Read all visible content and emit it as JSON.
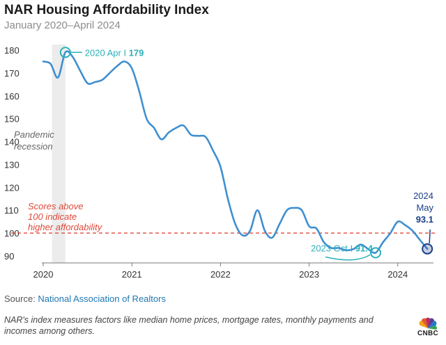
{
  "header": {
    "title": "NAR Housing Affordability Index",
    "subtitle": "January 2020–April 2024"
  },
  "chart_data": {
    "type": "line",
    "title": "NAR Housing Affordability Index",
    "subtitle": "January 2020–April 2024",
    "xlabel": "",
    "ylabel": "",
    "x_ticks": [
      "2020",
      "2021",
      "2022",
      "2023",
      "2024"
    ],
    "y_ticks": [
      90,
      100,
      110,
      120,
      130,
      140,
      150,
      160,
      170,
      180
    ],
    "ylim": [
      88,
      182
    ],
    "xlim": [
      "2020-01",
      "2024-05"
    ],
    "grid": false,
    "series": [
      {
        "color": "#3f8fd0",
        "x": [
          "2020-01",
          "2020-02",
          "2020-03",
          "2020-04",
          "2020-05",
          "2020-06",
          "2020-07",
          "2020-08",
          "2020-09",
          "2020-10",
          "2020-11",
          "2020-12",
          "2021-01",
          "2021-02",
          "2021-03",
          "2021-04",
          "2021-05",
          "2021-06",
          "2021-07",
          "2021-08",
          "2021-09",
          "2021-10",
          "2021-11",
          "2021-12",
          "2022-01",
          "2022-02",
          "2022-03",
          "2022-04",
          "2022-05",
          "2022-06",
          "2022-07",
          "2022-08",
          "2022-09",
          "2022-10",
          "2022-11",
          "2022-12",
          "2023-01",
          "2023-02",
          "2023-03",
          "2023-04",
          "2023-05",
          "2023-06",
          "2023-07",
          "2023-08",
          "2023-09",
          "2023-10",
          "2023-11",
          "2023-12",
          "2024-01",
          "2024-02",
          "2024-03",
          "2024-04",
          "2024-05"
        ],
        "y": [
          175,
          174,
          168,
          179,
          177,
          171,
          165.5,
          166,
          167,
          170,
          173,
          175,
          172,
          162,
          150,
          146,
          141,
          144,
          146,
          147,
          143,
          142.5,
          142,
          136,
          129,
          115,
          104,
          99,
          101,
          110,
          101,
          98,
          104,
          110,
          111,
          110,
          103,
          102,
          96,
          93.5,
          93.5,
          92.5,
          93,
          95,
          93,
          91.4,
          96,
          100,
          105,
          103.5,
          101,
          97,
          93.1
        ]
      }
    ],
    "reference_line": {
      "value": 100,
      "color": "#e04a3a"
    },
    "recession_band": {
      "start": "2020-02",
      "end": "2020-04",
      "label": "Pandemic recession"
    },
    "threshold_label": "Scores above 100 indicate higher affordability",
    "annotations": [
      {
        "x": "2020-04",
        "y": 179,
        "label": "2020 Apr I",
        "value": "179",
        "color": "#2ab0b9"
      },
      {
        "x": "2023-10",
        "y": 91.4,
        "label": "2023 Oct I",
        "value": "91.4",
        "color": "#2ab0b9"
      },
      {
        "x": "2024-05",
        "y": 93.1,
        "label_lines": [
          "2024",
          "May"
        ],
        "value": "93.1",
        "color": "#1b3f87"
      }
    ]
  },
  "footer": {
    "source_prefix": "Source: ",
    "source_name": "National Association of Realtors",
    "note": "NAR's index measures factors like median home prices, mortgage rates, monthly payments and incomes among others.",
    "logo_text": "CNBC"
  }
}
